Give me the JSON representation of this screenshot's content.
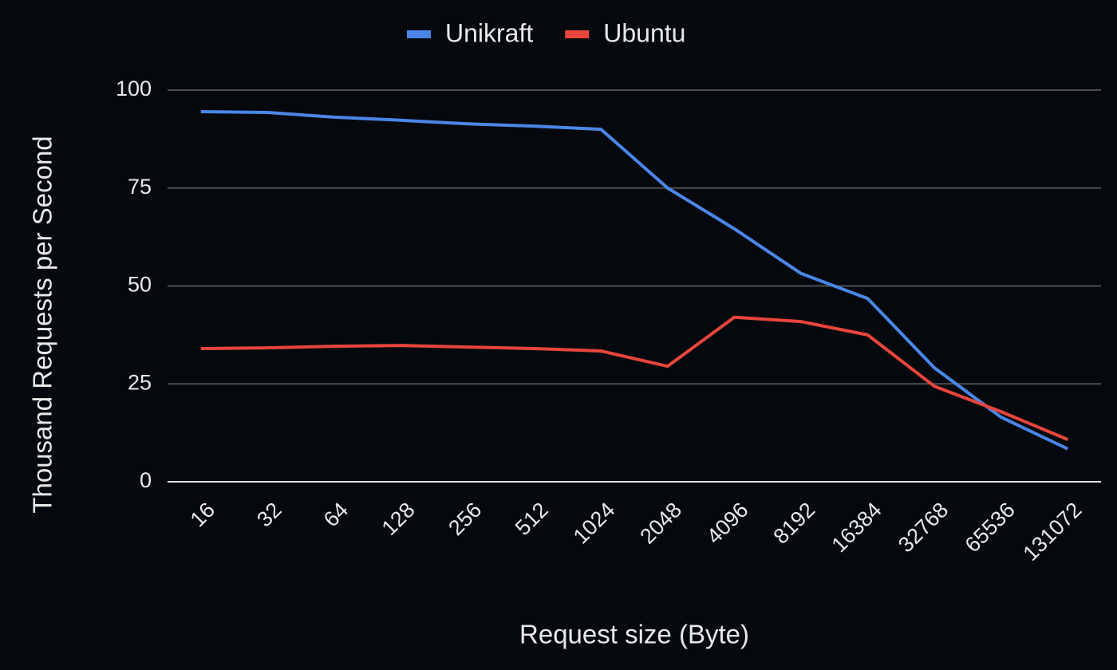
{
  "chart_data": {
    "type": "line",
    "x_label": "Request size (Byte)",
    "y_label": "Thousand Requests per Second",
    "categories": [
      "16",
      "32",
      "64",
      "128",
      "256",
      "512",
      "1024",
      "2048",
      "4096",
      "8192",
      "16384",
      "32768",
      "65536",
      "131072"
    ],
    "series": [
      {
        "name": "Unikraft",
        "color": "#4a86e8",
        "values": [
          94.5,
          94.3,
          93.1,
          92.3,
          91.4,
          90.8,
          90.0,
          75.0,
          64.6,
          53.2,
          46.8,
          29.1,
          16.5,
          8.4
        ]
      },
      {
        "name": "Ubuntu",
        "color": "#e8453c",
        "values": [
          34.0,
          34.2,
          34.6,
          34.8,
          34.4,
          34.0,
          33.4,
          29.5,
          42.0,
          40.9,
          37.5,
          24.4,
          17.9,
          10.8
        ]
      }
    ],
    "ylim": [
      0,
      100
    ],
    "yticks": [
      0,
      25,
      50,
      75,
      100
    ],
    "grid": true,
    "legend": "top"
  }
}
